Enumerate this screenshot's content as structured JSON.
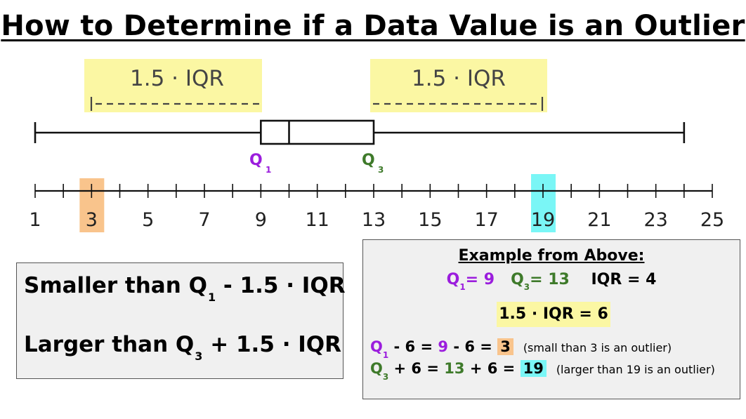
{
  "title": "How to Determine if a Data Value is an Outlier",
  "whisker_labels": {
    "left": "1.5 · IQR",
    "right": "1.5 · IQR"
  },
  "quartiles": {
    "q1": {
      "letter": "Q",
      "sub": "1",
      "value": 9
    },
    "q3": {
      "letter": "Q",
      "sub": "3",
      "value": 13
    }
  },
  "box_plot": {
    "min": 1,
    "q1": 9,
    "median": 10,
    "q3": 13,
    "max": 24
  },
  "number_line": {
    "min": 1,
    "max": 25,
    "tick_step": 1,
    "labels": [
      "1",
      "3",
      "5",
      "7",
      "9",
      "11",
      "13",
      "15",
      "17",
      "19",
      "21",
      "23",
      "25"
    ],
    "highlight_low": 3,
    "highlight_high": 19
  },
  "rules": {
    "smaller": {
      "text": "Smaller than Q",
      "sub": "1",
      "rest": " - 1.5 · IQR"
    },
    "larger": {
      "text": "Larger than Q",
      "sub": "3",
      "rest": " + 1.5 · IQR"
    }
  },
  "example": {
    "heading": "Example from Above:",
    "q1_label": "Q",
    "q1_sub": "1",
    "q1_eq": "= 9",
    "q3_label": "Q",
    "q3_sub": "3",
    "q3_eq": "= 13",
    "iqr": "IQR = 4",
    "iqr_scaled": "1.5 · IQR = 6",
    "low_calc": {
      "q": "Q",
      "sub": "1",
      "mid": " - 6 = ",
      "val": "9",
      "mid2": " - 6 = ",
      "result": "3",
      "note": "(small than 3 is an outlier)"
    },
    "high_calc": {
      "q": "Q",
      "sub": "3",
      "mid": " + 6 = ",
      "val": "13",
      "mid2": " + 6 = ",
      "result": "19",
      "note": "(larger than 19 is an outlier)"
    }
  },
  "colors": {
    "yellow_highlight": "#fbf7a3",
    "orange_highlight": "#f9c48c",
    "cyan_highlight": "#7af6f6",
    "q1_color": "#9b1ddd",
    "q3_color": "#3e7a2a"
  }
}
